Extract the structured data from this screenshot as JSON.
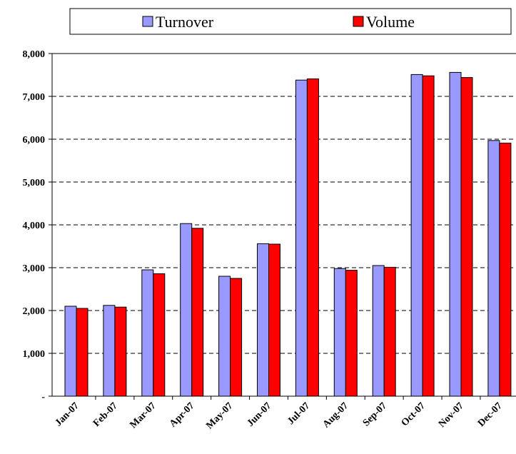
{
  "chart_data": {
    "type": "bar",
    "categories": [
      "Jan-07",
      "Feb-07",
      "Mar-07",
      "Apr-07",
      "May-07",
      "Jun-07",
      "Jul-07",
      "Aug-07",
      "Sep-07",
      "Oct-07",
      "Nov-07",
      "Dec-07"
    ],
    "series": [
      {
        "name": "Turnover",
        "color": "#9999ff",
        "values": [
          2100,
          2120,
          2950,
          4030,
          2800,
          3560,
          7380,
          2980,
          3050,
          7510,
          7560,
          5970
        ]
      },
      {
        "name": "Volume",
        "color": "#ff0000",
        "values": [
          2050,
          2080,
          2860,
          3920,
          2750,
          3550,
          7410,
          2940,
          3010,
          7480,
          7440,
          5910
        ]
      }
    ],
    "ylim": [
      0,
      8000
    ],
    "yticks": [
      {
        "value": 0,
        "label": "-"
      },
      {
        "value": 1000,
        "label": "1,000"
      },
      {
        "value": 2000,
        "label": "2,000"
      },
      {
        "value": 3000,
        "label": "3,000"
      },
      {
        "value": 4000,
        "label": "4,000"
      },
      {
        "value": 5000,
        "label": "5,000"
      },
      {
        "value": 6000,
        "label": "6,000"
      },
      {
        "value": 7000,
        "label": "7,000"
      },
      {
        "value": 8000,
        "label": "8,000"
      }
    ],
    "grid": true,
    "legend": "top"
  }
}
